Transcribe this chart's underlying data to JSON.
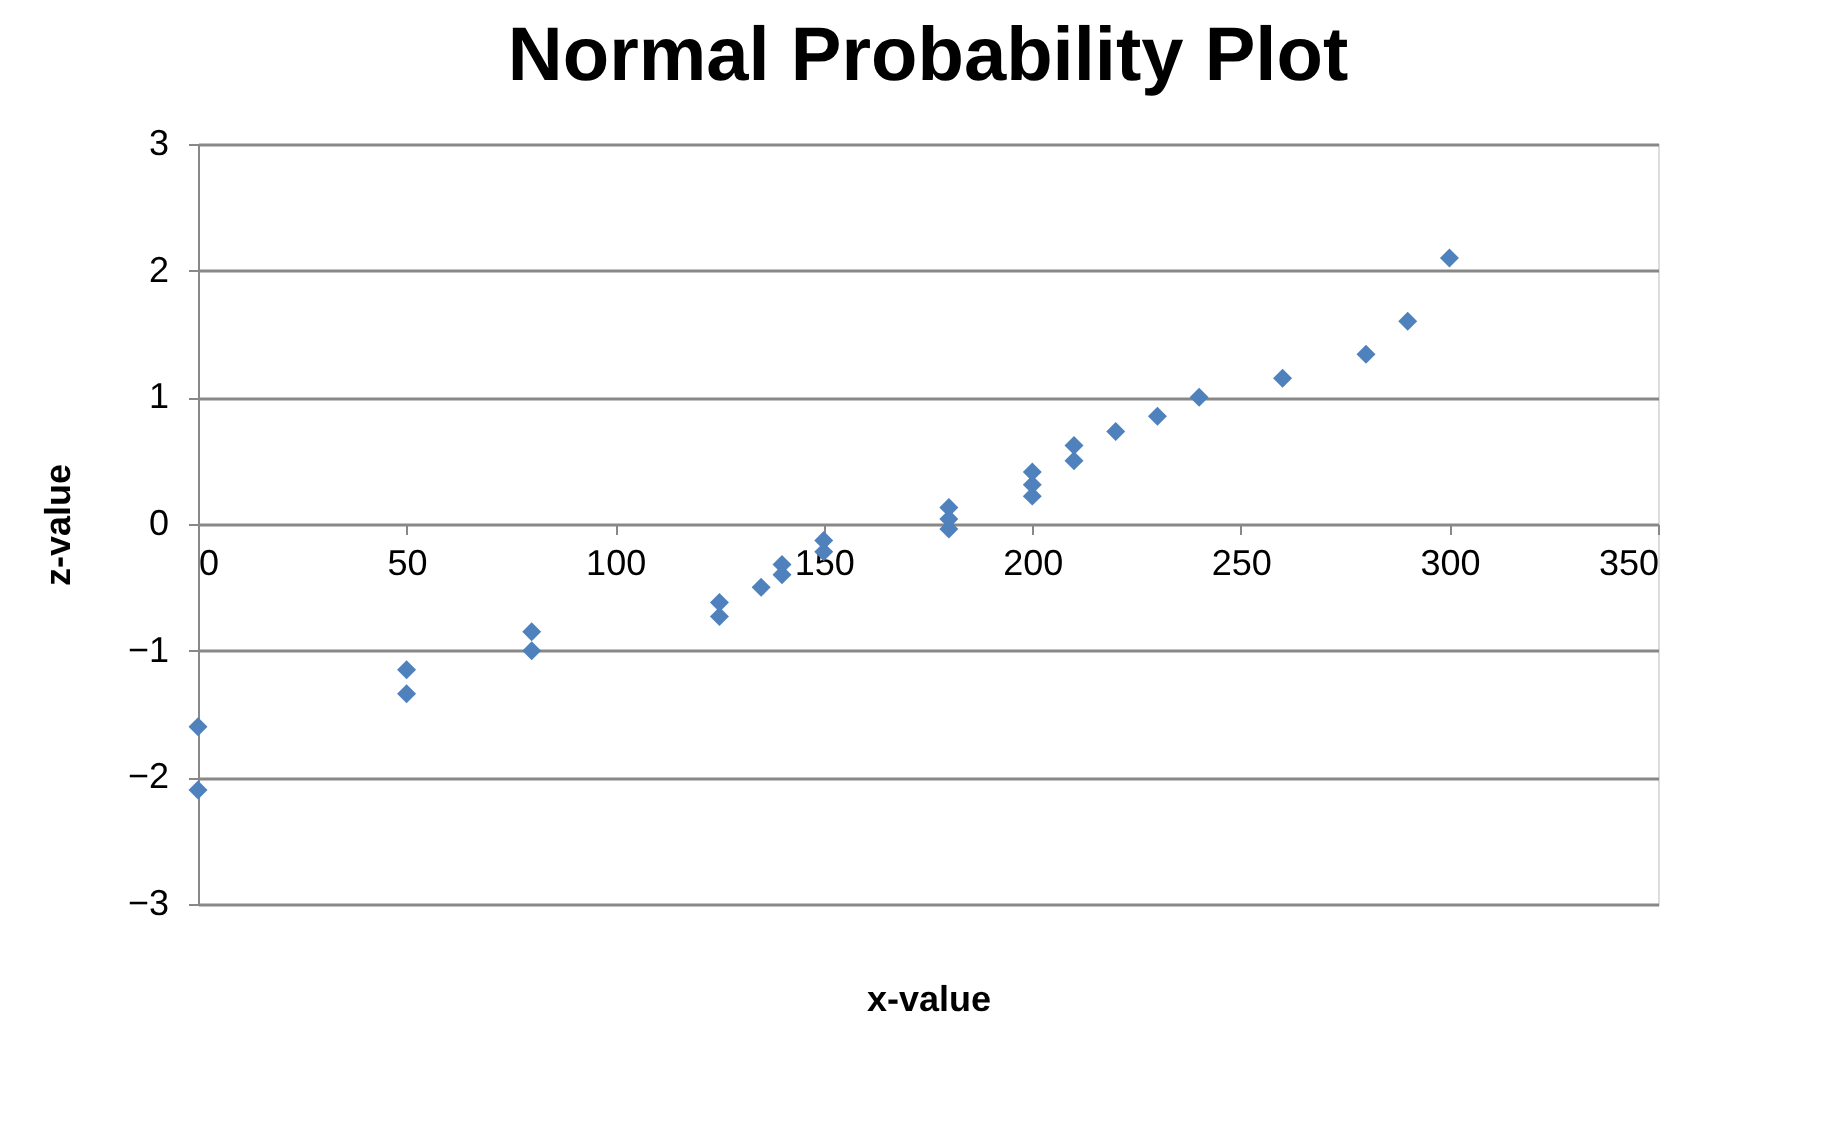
{
  "chart_data": {
    "type": "scatter",
    "title": "Normal Probability Plot",
    "xlabel": "x-value",
    "ylabel": "z-value",
    "x": [
      0,
      0,
      50,
      50,
      80,
      80,
      125,
      125,
      135,
      140,
      140,
      150,
      150,
      180,
      180,
      180,
      200,
      200,
      200,
      210,
      210,
      220,
      230,
      240,
      260,
      280,
      290,
      300
    ],
    "series": [
      {
        "color": "#4f81bd",
        "values": [
          -2.1,
          -1.6,
          -1.34,
          -1.15,
          -1.0,
          -0.85,
          -0.73,
          -0.62,
          -0.5,
          -0.4,
          -0.32,
          -0.22,
          -0.13,
          -0.04,
          0.04,
          0.13,
          0.22,
          0.31,
          0.41,
          0.5,
          0.62,
          0.73,
          0.85,
          1.0,
          1.15,
          1.34,
          1.6,
          2.1
        ]
      }
    ],
    "xlim": [
      0,
      350
    ],
    "xticks": [
      0,
      50,
      100,
      150,
      200,
      250,
      300,
      350
    ],
    "ylim": [
      -3,
      3
    ],
    "yticks": [
      -3,
      -2,
      -1,
      0,
      1,
      2,
      3
    ],
    "grid": "y",
    "marker": "diamond"
  }
}
